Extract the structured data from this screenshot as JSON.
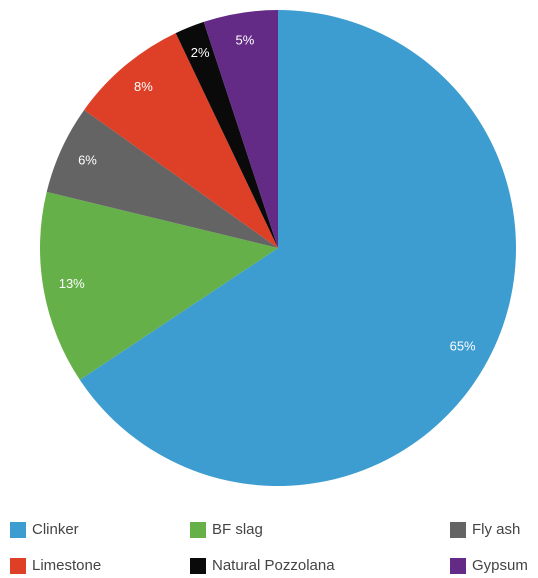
{
  "chart_data": {
    "type": "pie",
    "categories": [
      "Clinker",
      "BF slag",
      "Fly ash",
      "Limestone",
      "Natural Pozzolana",
      "Gypsum"
    ],
    "values": [
      65,
      13,
      6,
      8,
      2,
      5
    ],
    "value_labels": [
      "65%",
      "13%",
      "6%",
      "8%",
      "2%",
      "5%"
    ],
    "colors": [
      "#3d9dd0",
      "#66b04a",
      "#646464",
      "#dd4027",
      "#0a0a0a",
      "#632b86"
    ]
  }
}
